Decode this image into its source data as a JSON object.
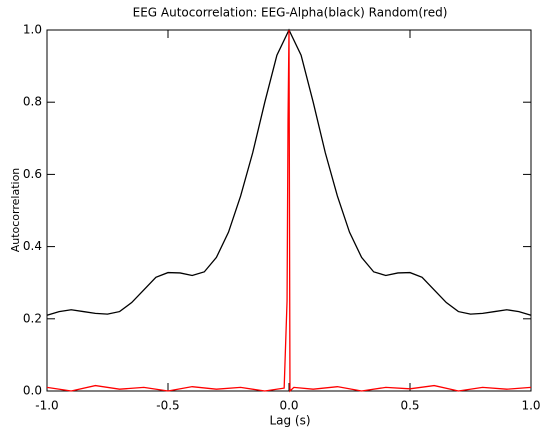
{
  "chart_data": {
    "type": "line",
    "title": "EEG Autocorrelation: EEG-Alpha(black) Random(red)",
    "x_label": "Lag (s)",
    "y_label": "Autocorrelation",
    "xlim": [
      -1,
      1
    ],
    "ylim": [
      0,
      1
    ],
    "xticks": [
      {
        "value": -1,
        "label": "-1.0"
      },
      -0.5,
      {
        "value": 0,
        "label": "0.0"
      },
      0.5,
      {
        "value": 1,
        "label": "1.0"
      }
    ],
    "yticks": [
      {
        "value": 0,
        "label": "0.0"
      },
      0.2,
      0.4,
      0.6,
      0.8,
      {
        "value": 1,
        "label": "1.0"
      }
    ],
    "grid": false,
    "series": [
      {
        "name": "EEG-Alpha",
        "color": "#000000",
        "x": [
          -1,
          -0.95,
          -0.9,
          -0.85,
          -0.8,
          -0.75,
          -0.7,
          -0.65,
          -0.6,
          -0.55,
          -0.5,
          -0.45,
          -0.4,
          -0.35,
          -0.3,
          -0.25,
          -0.2,
          -0.15,
          -0.1,
          -0.05,
          0,
          0.05,
          0.1,
          0.15,
          0.2,
          0.25,
          0.3,
          0.35,
          0.4,
          0.45,
          0.5,
          0.55,
          0.6,
          0.65,
          0.7,
          0.75,
          0.8,
          0.85,
          0.9,
          0.95,
          1
        ],
        "values": [
          0.21,
          0.22,
          0.225,
          0.22,
          0.215,
          0.213,
          0.22,
          0.245,
          0.28,
          0.315,
          0.328,
          0.327,
          0.32,
          0.33,
          0.37,
          0.44,
          0.54,
          0.66,
          0.8,
          0.93,
          1.0,
          0.93,
          0.8,
          0.66,
          0.54,
          0.44,
          0.37,
          0.33,
          0.32,
          0.327,
          0.328,
          0.315,
          0.28,
          0.245,
          0.22,
          0.213,
          0.215,
          0.22,
          0.225,
          0.22,
          0.21
        ]
      },
      {
        "name": "Random",
        "color": "#ff0000",
        "x": [
          -1,
          -0.9,
          -0.8,
          -0.7,
          -0.6,
          -0.5,
          -0.4,
          -0.3,
          -0.2,
          -0.1,
          -0.02,
          -0.008,
          -0.004,
          0,
          0.004,
          0.02,
          0.1,
          0.2,
          0.3,
          0.4,
          0.5,
          0.6,
          0.7,
          0.8,
          0.9,
          1
        ],
        "values": [
          0.01,
          0.0,
          0.015,
          0.005,
          0.01,
          0.0,
          0.012,
          0.005,
          0.01,
          0.0,
          0.008,
          0.25,
          0.75,
          1.0,
          0.0,
          0.01,
          0.005,
          0.012,
          0.0,
          0.01,
          0.006,
          0.015,
          0.0,
          0.01,
          0.005,
          0.01
        ]
      }
    ]
  }
}
